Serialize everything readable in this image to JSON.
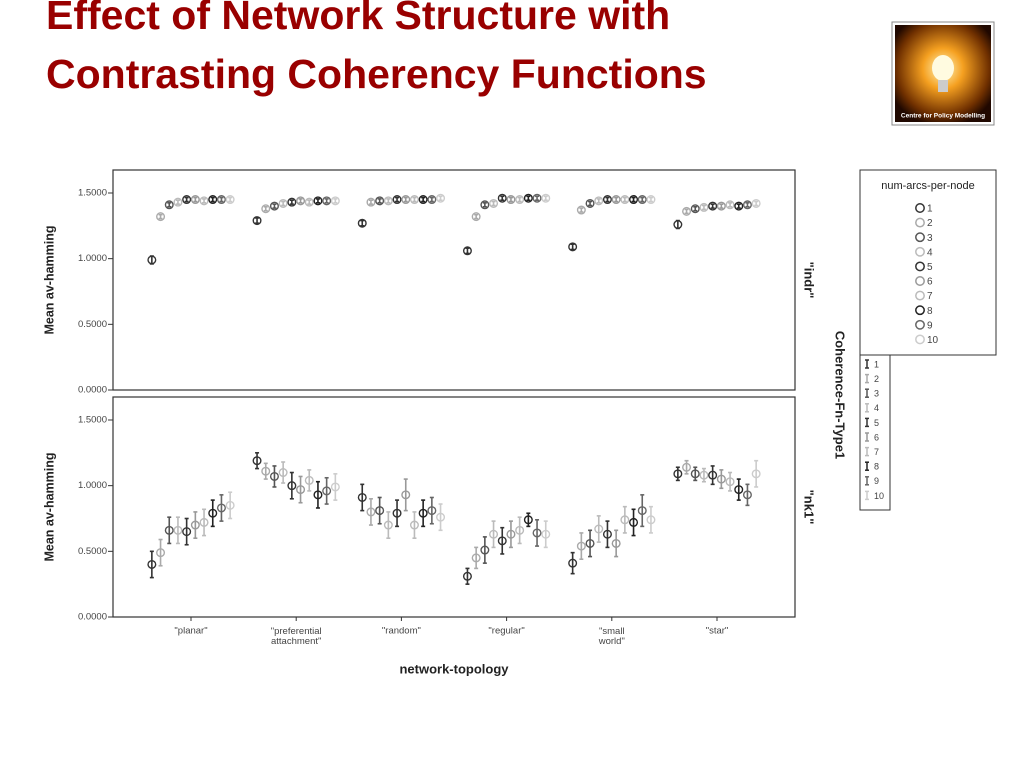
{
  "title": "Effect of Network Structure with Contrasting Coherency Functions",
  "logo_text": "Centre for Policy Modelling",
  "strip_title": "Coherence-Fn-Type1",
  "chart_data": [
    {
      "type": "errorbar",
      "panel_label": "\"indr\"",
      "ylabel": "Mean av-hamming",
      "ylim": [
        0,
        1.675
      ],
      "yticks": [
        {
          "value": 0,
          "label": "0.0000"
        },
        {
          "value": 0.5,
          "label": "0.5000"
        },
        {
          "value": 1,
          "label": "1.0000"
        },
        {
          "value": 1.5,
          "label": "1.5000"
        }
      ],
      "legend_title": "num-arcs-per-node",
      "series": [
        {
          "name": "1",
          "color": "#333333",
          "values": [
            0.99,
            1.29,
            1.27,
            1.06,
            1.09,
            1.26
          ],
          "errors": [
            0.03,
            0.02,
            0.02,
            0.02,
            0.02,
            0.03
          ]
        },
        {
          "name": "2",
          "color": "#aaaaaa",
          "values": [
            1.32,
            1.38,
            1.43,
            1.32,
            1.37,
            1.36
          ],
          "errors": [
            0.015,
            0.015,
            0.015,
            0.015,
            0.015,
            0.015
          ]
        },
        {
          "name": "3",
          "color": "#555555",
          "values": [
            1.41,
            1.4,
            1.44,
            1.41,
            1.42,
            1.38
          ],
          "errors": [
            0.015,
            0.015,
            0.015,
            0.015,
            0.015,
            0.015
          ]
        },
        {
          "name": "4",
          "color": "#bbbbbb",
          "values": [
            1.43,
            1.42,
            1.44,
            1.42,
            1.44,
            1.39
          ],
          "errors": [
            0.015,
            0.015,
            0.015,
            0.015,
            0.015,
            0.015
          ]
        },
        {
          "name": "5",
          "color": "#333333",
          "values": [
            1.45,
            1.43,
            1.45,
            1.46,
            1.45,
            1.4
          ],
          "errors": [
            0.015,
            0.015,
            0.015,
            0.015,
            0.015,
            0.015
          ]
        },
        {
          "name": "6",
          "color": "#999999",
          "values": [
            1.45,
            1.44,
            1.45,
            1.45,
            1.45,
            1.4
          ],
          "errors": [
            0.015,
            0.015,
            0.015,
            0.015,
            0.015,
            0.015
          ]
        },
        {
          "name": "7",
          "color": "#bbbbbb",
          "values": [
            1.44,
            1.43,
            1.45,
            1.45,
            1.45,
            1.41
          ],
          "errors": [
            0.015,
            0.015,
            0.015,
            0.015,
            0.015,
            0.015
          ]
        },
        {
          "name": "8",
          "color": "#222222",
          "values": [
            1.45,
            1.44,
            1.45,
            1.46,
            1.45,
            1.4
          ],
          "errors": [
            0.015,
            0.015,
            0.015,
            0.015,
            0.015,
            0.015
          ]
        },
        {
          "name": "9",
          "color": "#666666",
          "values": [
            1.45,
            1.44,
            1.45,
            1.46,
            1.45,
            1.41
          ],
          "errors": [
            0.015,
            0.015,
            0.015,
            0.015,
            0.015,
            0.015
          ]
        },
        {
          "name": "10",
          "color": "#cccccc",
          "values": [
            1.45,
            1.44,
            1.46,
            1.46,
            1.45,
            1.42
          ],
          "errors": [
            0.015,
            0.015,
            0.015,
            0.015,
            0.015,
            0.015
          ]
        }
      ]
    },
    {
      "type": "errorbar",
      "panel_label": "\"nk1\"",
      "ylabel": "Mean av-hamming",
      "xlabel": "network-topology",
      "categories": [
        "\"planar\"",
        "\"preferential attachment\"",
        "\"random\"",
        "\"regular\"",
        "\"small world\"",
        "\"star\""
      ],
      "ylim": [
        0,
        1.675
      ],
      "yticks": [
        {
          "value": 0,
          "label": "0.0000"
        },
        {
          "value": 0.5,
          "label": "0.5000"
        },
        {
          "value": 1,
          "label": "1.0000"
        },
        {
          "value": 1.5,
          "label": "1.5000"
        }
      ],
      "series": [
        {
          "name": "1",
          "color": "#333333",
          "values": [
            0.4,
            1.19,
            0.91,
            0.31,
            0.41,
            1.09
          ],
          "errors": [
            0.1,
            0.06,
            0.1,
            0.06,
            0.08,
            0.05
          ]
        },
        {
          "name": "2",
          "color": "#aaaaaa",
          "values": [
            0.49,
            1.11,
            0.8,
            0.45,
            0.54,
            1.14
          ],
          "errors": [
            0.1,
            0.06,
            0.1,
            0.08,
            0.1,
            0.05
          ]
        },
        {
          "name": "3",
          "color": "#555555",
          "values": [
            0.66,
            1.07,
            0.81,
            0.51,
            0.56,
            1.09
          ],
          "errors": [
            0.1,
            0.08,
            0.1,
            0.1,
            0.1,
            0.05
          ]
        },
        {
          "name": "4",
          "color": "#bbbbbb",
          "values": [
            0.66,
            1.1,
            0.7,
            0.63,
            0.67,
            1.08
          ],
          "errors": [
            0.1,
            0.08,
            0.1,
            0.1,
            0.1,
            0.05
          ]
        },
        {
          "name": "5",
          "color": "#333333",
          "values": [
            0.65,
            1.0,
            0.79,
            0.58,
            0.63,
            1.08
          ],
          "errors": [
            0.1,
            0.1,
            0.1,
            0.1,
            0.1,
            0.07
          ]
        },
        {
          "name": "6",
          "color": "#999999",
          "values": [
            0.7,
            0.97,
            0.93,
            0.63,
            0.56,
            1.05
          ],
          "errors": [
            0.1,
            0.1,
            0.12,
            0.1,
            0.1,
            0.07
          ]
        },
        {
          "name": "7",
          "color": "#bbbbbb",
          "values": [
            0.72,
            1.04,
            0.7,
            0.66,
            0.74,
            1.03
          ],
          "errors": [
            0.1,
            0.08,
            0.1,
            0.1,
            0.1,
            0.07
          ]
        },
        {
          "name": "8",
          "color": "#222222",
          "values": [
            0.79,
            0.93,
            0.79,
            0.74,
            0.72,
            0.97
          ],
          "errors": [
            0.1,
            0.1,
            0.1,
            0.05,
            0.1,
            0.08
          ]
        },
        {
          "name": "9",
          "color": "#666666",
          "values": [
            0.83,
            0.96,
            0.81,
            0.64,
            0.81,
            0.93
          ],
          "errors": [
            0.1,
            0.1,
            0.1,
            0.1,
            0.12,
            0.08
          ]
        },
        {
          "name": "10",
          "color": "#cccccc",
          "values": [
            0.85,
            0.99,
            0.76,
            0.63,
            0.74,
            1.09
          ],
          "errors": [
            0.1,
            0.1,
            0.1,
            0.1,
            0.1,
            0.1
          ]
        }
      ]
    }
  ]
}
